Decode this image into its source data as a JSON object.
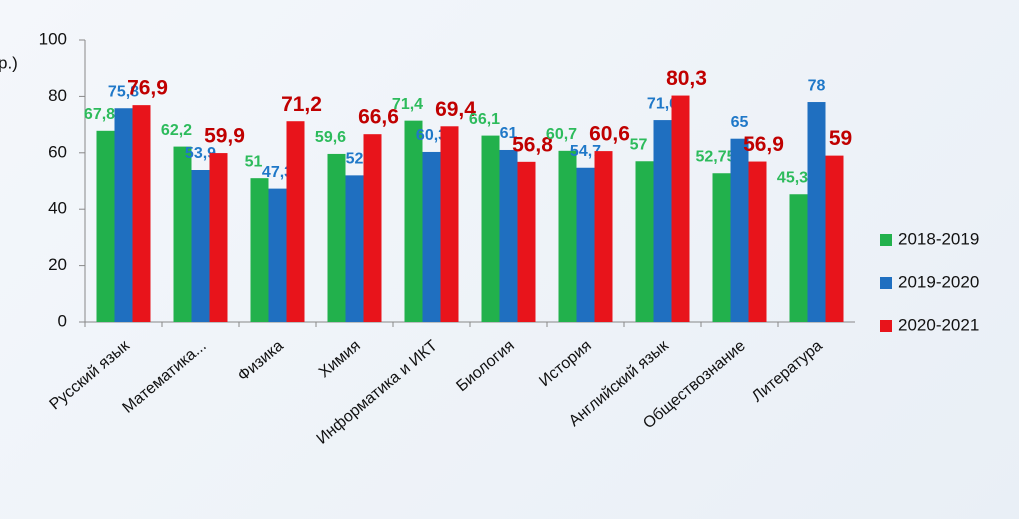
{
  "chart_data": {
    "type": "bar",
    "ylabel": "р.)",
    "categories": [
      "Русский язык",
      "Математика...",
      "Физика",
      "Химия",
      "Информатика и ИКТ",
      "Биология",
      "История",
      "Английский язык",
      "Обществознание",
      "Литература"
    ],
    "series": [
      {
        "name": "2018-2019",
        "color": "#22b14c",
        "label_color": "#2dbb5c",
        "values": [
          67.8,
          62.2,
          51,
          59.6,
          71.4,
          66.1,
          60.7,
          57,
          52.75,
          45.3
        ],
        "value_labels": [
          "67,8",
          "62,2",
          "51",
          "59,6",
          "71,4",
          "66,1",
          "60,7",
          "57",
          "52,75",
          "45,3"
        ]
      },
      {
        "name": "2019-2020",
        "color": "#1f6fc0",
        "label_color": "#1f78c8",
        "values": [
          75.8,
          53.9,
          47.3,
          52,
          60.3,
          61,
          54.7,
          71.6,
          65,
          78
        ],
        "value_labels": [
          "75,8",
          "53,9",
          "47,3",
          "52",
          "60,3",
          "61",
          "54,7",
          "71,6",
          "65",
          "78"
        ]
      },
      {
        "name": "2020-2021",
        "color": "#e8141b",
        "label_color": "#c00000",
        "values": [
          76.9,
          59.9,
          71.2,
          66.6,
          69.4,
          56.8,
          60.6,
          80.3,
          56.9,
          59
        ],
        "value_labels": [
          "76,9",
          "59,9",
          "71,2",
          "66,6",
          "69,4",
          "56,8",
          "60,6",
          "80,3",
          "56,9",
          "59"
        ]
      }
    ],
    "ylim": [
      0,
      100
    ],
    "yticks": [
      0,
      20,
      40,
      60,
      80,
      100
    ],
    "grid": false,
    "legend": "right"
  }
}
